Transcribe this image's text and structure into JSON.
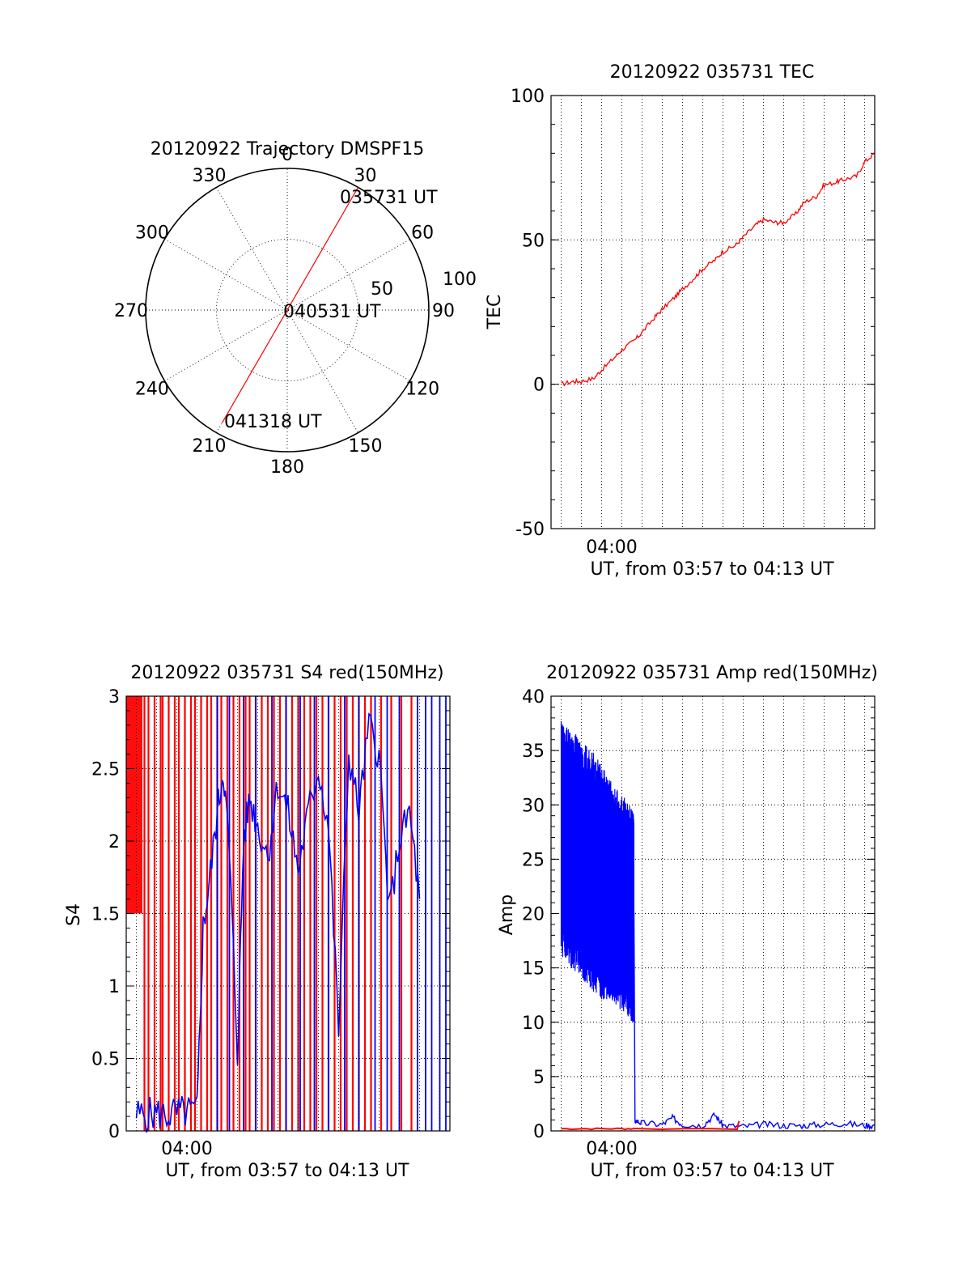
{
  "chart_data": [
    {
      "id": "traj",
      "type": "polar",
      "title": "20120922 Trajectory DMSPF15",
      "angle_labels": [
        "0",
        "30",
        "60",
        "90",
        "120",
        "150",
        "180",
        "210",
        "240",
        "270",
        "300",
        "330"
      ],
      "radial_ticks": [
        "50",
        "100"
      ],
      "track": [
        {
          "azimuth": 30,
          "zenith": 100,
          "label": "035731 UT"
        },
        {
          "azimuth": 0,
          "zenith": 0,
          "label": "040531 UT"
        },
        {
          "azimuth": 210,
          "zenith": 92,
          "label": "041318 UT"
        }
      ],
      "colors": {
        "track": "#ff0000"
      }
    },
    {
      "id": "tec",
      "type": "line",
      "title": "20120922 035731 TEC",
      "ylabel": "TEC",
      "xlabel": "UT, from 03:57 to 04:13 UT",
      "xtick_label": "04:00",
      "ylim": [
        -50,
        100
      ],
      "yticks": [
        "-50",
        "0",
        "50",
        "100"
      ],
      "xlim_minutes": [
        3.5,
        19.5
      ],
      "series": [
        {
          "color": "#ff0000",
          "x": [
            4.0,
            4.6,
            5.0,
            5.6,
            6.0,
            6.6,
            7.0,
            7.6,
            8.0,
            8.6,
            9.0,
            9.6,
            10.0,
            10.6,
            11.0,
            11.6,
            12.0,
            12.6,
            13.0,
            13.6,
            14.0,
            14.6,
            15.0,
            15.6,
            16.0,
            16.6,
            17.0,
            17.6,
            18.0,
            18.6,
            19.0,
            19.5
          ],
          "y": [
            0,
            1,
            1,
            2,
            5,
            9,
            12,
            15,
            18,
            23,
            26,
            30,
            33,
            37,
            40,
            43,
            46,
            48,
            51,
            55,
            57,
            56,
            56,
            59,
            63,
            65,
            69,
            70,
            71,
            72,
            77,
            80
          ]
        }
      ]
    },
    {
      "id": "s4",
      "type": "line",
      "title": "20120922 035731 S4 red(150MHz)",
      "ylabel": "S4",
      "xlabel": "UT, from 03:57 to 04:13 UT",
      "xtick_label": "04:00",
      "ylim": [
        0,
        3
      ],
      "yticks": [
        "0",
        "0.5",
        "1",
        "1.5",
        "2",
        "2.5",
        "3"
      ],
      "xlim_minutes": [
        3.5,
        19.5
      ],
      "series": [
        {
          "name_hidden": true,
          "color": "#0000ff",
          "x": [
            4.0,
            4.5,
            5.0,
            5.5,
            6.0,
            6.5,
            7.0,
            7.3,
            7.6,
            8.0,
            8.3,
            8.6,
            9.0,
            9.3,
            9.6,
            10.0,
            10.5,
            11.0,
            11.5,
            12.0,
            12.5,
            13.0,
            13.5,
            14.0,
            14.5,
            15.0,
            15.5,
            16.0,
            16.5,
            17.0,
            17.5,
            18.0
          ],
          "y": [
            0.11,
            0.11,
            0.12,
            0.11,
            0.12,
            0.13,
            0.13,
            1.4,
            1.7,
            2.2,
            2.5,
            1.9,
            0.55,
            2.0,
            2.3,
            2.1,
            1.9,
            2.4,
            2.2,
            1.8,
            2.2,
            2.5,
            2.1,
            0.7,
            2.6,
            2.2,
            2.8,
            2.6,
            1.5,
            2.0,
            2.2,
            1.6
          ]
        }
      ],
      "red_spike_minutes": [
        4.4,
        4.6,
        4.9,
        5.2,
        5.3,
        5.6,
        5.9,
        6.1,
        6.4,
        6.7,
        6.9,
        7.2,
        7.5,
        7.7,
        8.0,
        8.2,
        8.5,
        8.8,
        9.1,
        9.4,
        9.6,
        9.9,
        10.2,
        10.5,
        10.8,
        11.1,
        11.4,
        11.7,
        12.0,
        12.3,
        12.6,
        12.9,
        13.2,
        13.5,
        13.8,
        14.1,
        14.4,
        14.7,
        15.0,
        15.3,
        15.6,
        16.1,
        16.6,
        17.1,
        17.6
      ],
      "blue_spike_minutes": [
        8.0,
        8.6,
        9.3,
        9.9,
        10.7,
        11.4,
        12.1,
        12.8,
        13.5,
        14.3,
        15.0,
        15.8,
        16.4,
        17.0,
        17.9,
        18.3,
        18.6,
        19.0,
        19.3
      ],
      "colors": {
        "red": "#ff0000",
        "blue": "#0000ff"
      }
    },
    {
      "id": "amp",
      "type": "line",
      "title": "20120922 035731 Amp red(150MHz)",
      "ylabel": "Amp",
      "xlabel": "UT, from 03:57 to 04:13 UT",
      "xtick_label": "04:00",
      "ylim": [
        0,
        40
      ],
      "yticks": [
        "0",
        "5",
        "10",
        "15",
        "20",
        "25",
        "30",
        "35",
        "40"
      ],
      "xlim_minutes": [
        3.5,
        19.5
      ],
      "series": [
        {
          "color": "#0000ff",
          "x": [
            4.0,
            4.5,
            5.0,
            5.5,
            6.0,
            6.5,
            7.0,
            7.5,
            7.6,
            7.65,
            8.0,
            9.0,
            9.5,
            10.0,
            11.0,
            11.6,
            12.0,
            13.0,
            14.0,
            15.0,
            16.0,
            17.0,
            18.0,
            19.0,
            19.5
          ],
          "y": [
            26,
            27,
            25,
            24,
            23,
            22,
            21,
            21,
            20,
            1,
            0.7,
            0.6,
            1.2,
            0.6,
            0.5,
            1.5,
            0.5,
            0.4,
            0.6,
            0.5,
            0.5,
            0.6,
            0.7,
            0.5,
            0.5
          ],
          "band": [
            [
              4.0,
              19,
              35
            ],
            [
              4.5,
              18,
              34
            ],
            [
              5.0,
              17,
              33
            ],
            [
              5.5,
              16,
              32
            ],
            [
              6.0,
              15,
              31
            ],
            [
              6.5,
              15,
              29
            ],
            [
              7.0,
              14,
              28
            ],
            [
              7.5,
              13,
              27
            ],
            [
              7.6,
              13,
              26
            ]
          ]
        },
        {
          "color": "#ff0000",
          "x": [
            4.0,
            5.0,
            6.0,
            7.0,
            7.6,
            12.7,
            12.8
          ],
          "y": [
            0.2,
            0.2,
            0.2,
            0.2,
            0.2,
            0.2,
            0.9
          ]
        }
      ]
    }
  ]
}
